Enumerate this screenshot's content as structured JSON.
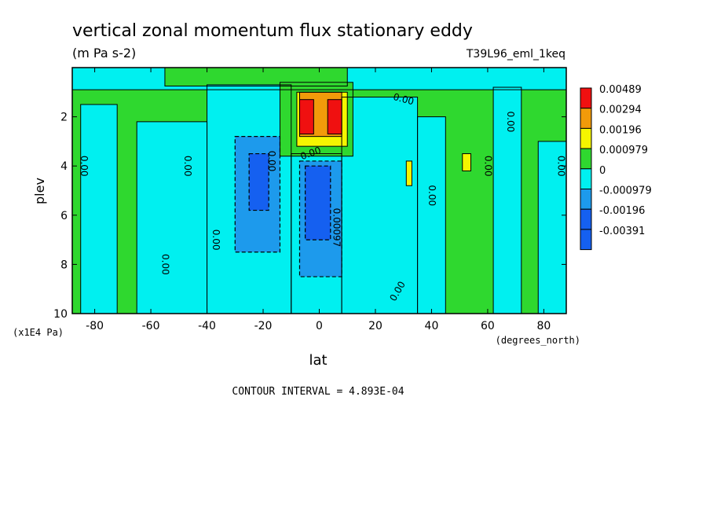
{
  "chart_data": {
    "type": "heatmap",
    "title": "vertical zonal momentum flux stationary eddy",
    "units_label": "(m Pa s-2)",
    "run_label": "T39L96_eml_1keq",
    "xlabel": "lat",
    "x_units": "(degrees_north)",
    "ylabel": "plev",
    "y_units": "(x1E4 Pa)",
    "footer": "CONTOUR INTERVAL = 4.893E-04",
    "xlim": [
      -88,
      88
    ],
    "ylim": [
      10,
      0
    ],
    "x_ticks": [
      -80,
      -60,
      -40,
      -20,
      0,
      20,
      40,
      60,
      80
    ],
    "x_tick_labels": [
      "-80",
      "-60",
      "-40",
      "-20",
      "0",
      "20",
      "40",
      "60",
      "80"
    ],
    "y_ticks": [
      2,
      4,
      6,
      8,
      10
    ],
    "y_tick_labels": [
      "2",
      "4",
      "6",
      "8",
      "10"
    ],
    "legend": {
      "placement": "right",
      "levels": [
        {
          "label": "0.00489",
          "color": "#f01010"
        },
        {
          "label": "0.00294",
          "color": "#f29a0a"
        },
        {
          "label": "0.00196",
          "color": "#f5f500"
        },
        {
          "label": "0.000979",
          "color": "#2fd82f"
        },
        {
          "label": "0",
          "color": "#00f0f0"
        },
        {
          "label": "-0.000979",
          "color": "#1d9aec"
        },
        {
          "label": "-0.00196",
          "color": "#1560f0"
        },
        {
          "label": "-0.00391",
          "color": "#1560f0"
        }
      ]
    },
    "contour_labels": [
      {
        "text": "0.00",
        "x": 30,
        "y": 1.3,
        "rot": 15
      },
      {
        "text": "0.00",
        "x": 68,
        "y": 2.2,
        "rot": 90
      },
      {
        "text": "0.00",
        "x": -84,
        "y": 4.0,
        "rot": 90
      },
      {
        "text": "0.00",
        "x": -47,
        "y": 4.0,
        "rot": 90
      },
      {
        "text": "0.00",
        "x": -17,
        "y": 3.8,
        "rot": 90
      },
      {
        "text": "0.00",
        "x": -3,
        "y": 3.5,
        "rot": -20
      },
      {
        "text": "0.00",
        "x": 86,
        "y": 4.0,
        "rot": 90
      },
      {
        "text": "0.00",
        "x": 60,
        "y": 4.0,
        "rot": 90
      },
      {
        "text": "0.00",
        "x": 40,
        "y": 5.2,
        "rot": 90
      },
      {
        "text": "0.00097",
        "x": 6,
        "y": 6.5,
        "rot": 90
      },
      {
        "text": "0.00",
        "x": -37,
        "y": 7.0,
        "rot": 90
      },
      {
        "text": "0.00",
        "x": -55,
        "y": 8.0,
        "rot": 90
      },
      {
        "text": "0.00",
        "x": 28,
        "y": 9.1,
        "rot": -60
      }
    ],
    "cells": [
      {
        "lat": [
          -88,
          88
        ],
        "plev": [
          0,
          10
        ],
        "color": "#2fd82f"
      },
      {
        "lat": [
          -88,
          88
        ],
        "plev": [
          0,
          0.9
        ],
        "color": "#00f0f0"
      },
      {
        "lat": [
          -55,
          10
        ],
        "plev": [
          0,
          0.75
        ],
        "color": "#2fd82f"
      },
      {
        "lat": [
          -85,
          -72
        ],
        "plev": [
          1.5,
          10
        ],
        "color": "#00f0f0"
      },
      {
        "lat": [
          -65,
          -40
        ],
        "plev": [
          2.2,
          10
        ],
        "color": "#00f0f0"
      },
      {
        "lat": [
          -40,
          -10
        ],
        "plev": [
          0.7,
          10
        ],
        "color": "#00f0f0"
      },
      {
        "lat": [
          -10,
          8
        ],
        "plev": [
          3.5,
          10
        ],
        "color": "#00f0f0"
      },
      {
        "lat": [
          8,
          35
        ],
        "plev": [
          1.2,
          10
        ],
        "color": "#00f0f0"
      },
      {
        "lat": [
          35,
          45
        ],
        "plev": [
          2.0,
          10
        ],
        "color": "#00f0f0"
      },
      {
        "lat": [
          62,
          72
        ],
        "plev": [
          0.8,
          10
        ],
        "color": "#00f0f0"
      },
      {
        "lat": [
          78,
          88
        ],
        "plev": [
          3.0,
          10
        ],
        "color": "#00f0f0"
      },
      {
        "lat": [
          -30,
          -14
        ],
        "plev": [
          2.8,
          7.5
        ],
        "color": "#1d9aec"
      },
      {
        "lat": [
          -7,
          8
        ],
        "plev": [
          3.8,
          8.5
        ],
        "color": "#1d9aec"
      },
      {
        "lat": [
          -25,
          -18
        ],
        "plev": [
          3.5,
          5.8
        ],
        "color": "#1560f0"
      },
      {
        "lat": [
          -5,
          4
        ],
        "plev": [
          4.0,
          7.0
        ],
        "color": "#1560f0"
      },
      {
        "lat": [
          -14,
          12
        ],
        "plev": [
          0.6,
          3.6
        ],
        "color": "#2fd82f"
      },
      {
        "lat": [
          -8,
          10
        ],
        "plev": [
          1.0,
          3.2
        ],
        "color": "#f5f500"
      },
      {
        "lat": [
          -7,
          8
        ],
        "plev": [
          1.0,
          2.8
        ],
        "color": "#f29a0a"
      },
      {
        "lat": [
          -7,
          -2
        ],
        "plev": [
          1.3,
          2.7
        ],
        "color": "#f01010"
      },
      {
        "lat": [
          3,
          8
        ],
        "plev": [
          1.3,
          2.7
        ],
        "color": "#f01010"
      },
      {
        "lat": [
          31,
          33
        ],
        "plev": [
          3.8,
          4.8
        ],
        "color": "#f5f500"
      },
      {
        "lat": [
          51,
          54
        ],
        "plev": [
          3.5,
          4.2
        ],
        "color": "#f5f500"
      }
    ]
  }
}
